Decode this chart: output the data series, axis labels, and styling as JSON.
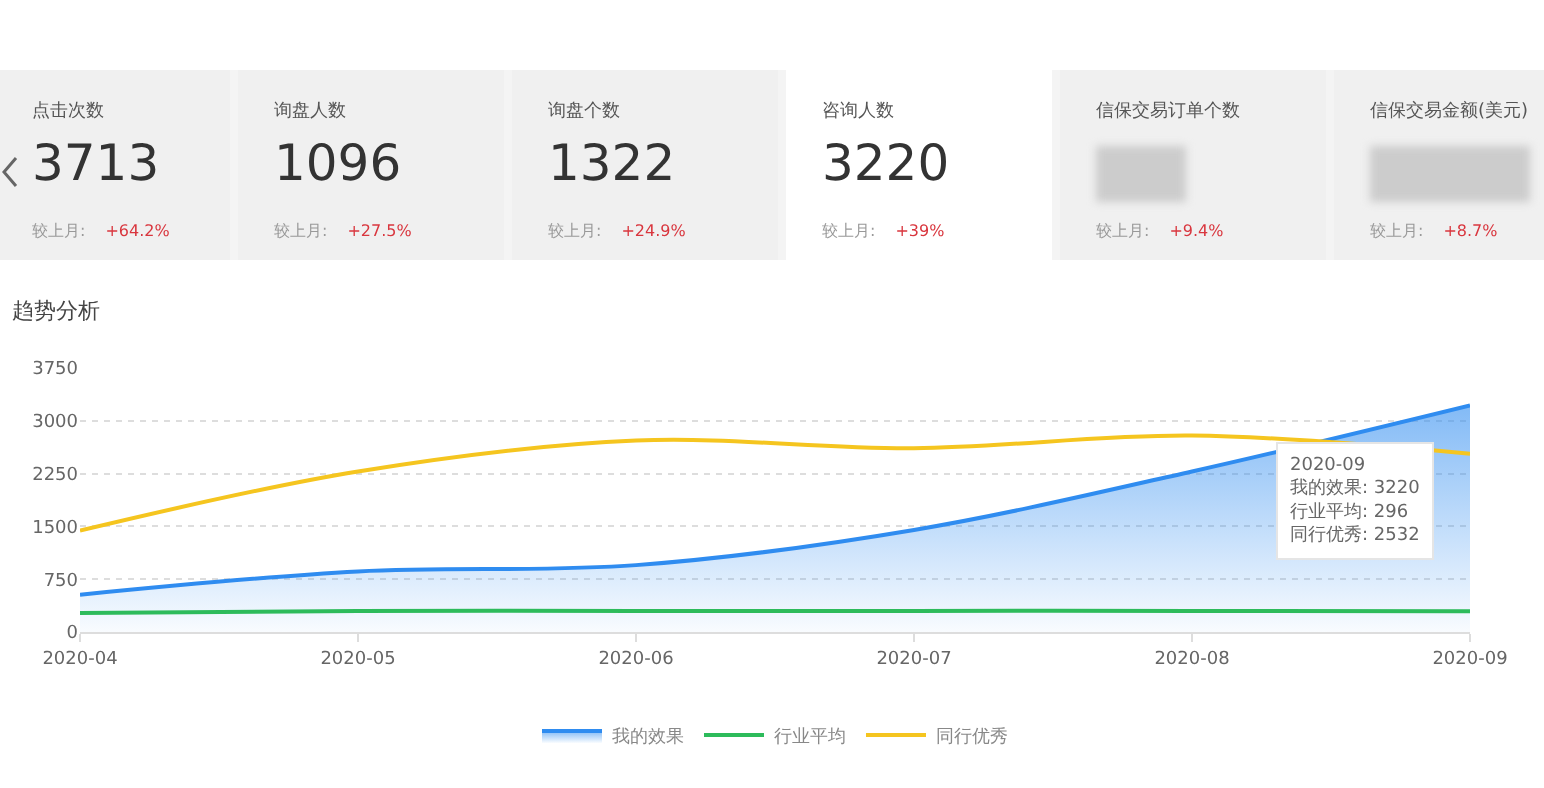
{
  "chart_data": [
    {
      "type": "other",
      "categories": [
        "点击次数",
        "询盘人数",
        "询盘个数",
        "咨询人数",
        "信保交易订单个数",
        "信保交易金额(美元)"
      ],
      "values": [
        3713,
        1096,
        1322,
        3220,
        null,
        null
      ],
      "data_labels": true,
      "annotations": [
        "较上月:",
        "+64.2%",
        "较上月:",
        "+27.5%",
        "较上月:",
        "+24.9%",
        "较上月:",
        "+39%",
        "较上月:",
        "+9.4%",
        "较上月:",
        "+8.7%"
      ]
    },
    {
      "type": "line",
      "title": "趋势分析",
      "categories": [
        "2020-04",
        "2020-05",
        "2020-06",
        "2020-07",
        "2020-08",
        "2020-09"
      ],
      "series": [
        {
          "name": "我的效果",
          "type": "area",
          "color": "#2f8cf0",
          "values": [
            530,
            860,
            950,
            1450,
            2280,
            3220
          ]
        },
        {
          "name": "行业平均",
          "color": "#2dbb5b",
          "values": [
            270,
            300,
            300,
            300,
            300,
            296
          ]
        },
        {
          "name": "同行优秀",
          "color": "#f5c51f",
          "values": [
            1440,
            2280,
            2720,
            2610,
            2790,
            2532
          ]
        }
      ],
      "ylim": [
        0,
        3750
      ],
      "yticks": [
        0,
        750,
        1500,
        2250,
        3000,
        3750
      ],
      "grid": "y",
      "legend": "bottom",
      "marker": "none",
      "line_style": "solid",
      "annotations": [
        "2020-09",
        "我的效果: 3220",
        "行业平均: 296",
        "同行优秀: 2532"
      ]
    }
  ]
}
